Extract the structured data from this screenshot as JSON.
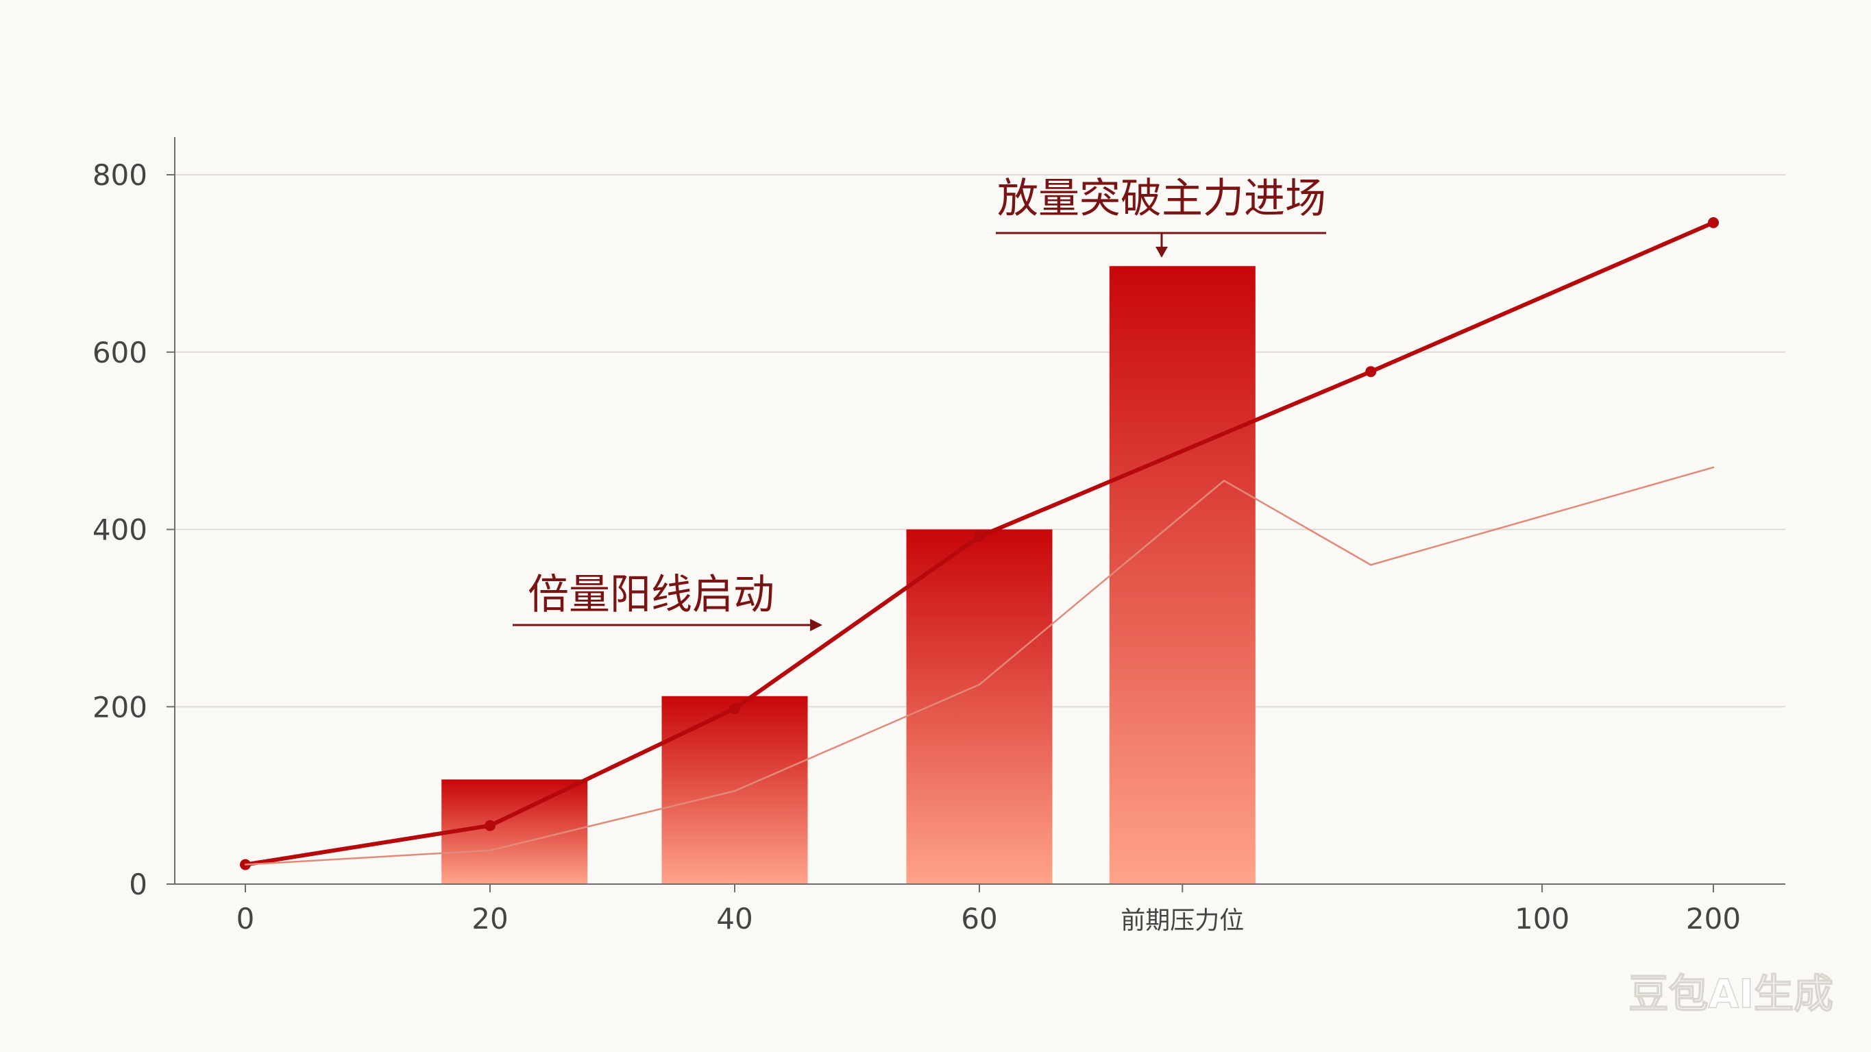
{
  "chart_data": {
    "type": "bar",
    "title": "",
    "xlabel": "",
    "ylabel": "",
    "ylim": [
      0,
      800
    ],
    "yticks": [
      0,
      200,
      400,
      600,
      800
    ],
    "xticks": [
      "0",
      "20",
      "40",
      "60",
      "前期压力位",
      "100",
      "200"
    ],
    "grid": true,
    "legend": "none",
    "bars": [
      {
        "x_index": 1.1,
        "value": 118
      },
      {
        "x_index": 2.0,
        "value": 212
      },
      {
        "x_index": 3.0,
        "value": 400
      },
      {
        "x_index": 3.83,
        "value": 697
      }
    ],
    "series": [
      {
        "type": "line",
        "points": [
          {
            "x_index": 0,
            "value": 22
          },
          {
            "x_index": 1,
            "value": 66
          },
          {
            "x_index": 2,
            "value": 198
          },
          {
            "x_index": 3,
            "value": 392
          },
          {
            "x_index": 4.6,
            "value": 578
          },
          {
            "x_index": 6,
            "value": 746
          }
        ],
        "markers": true,
        "color": "#b5090c"
      },
      {
        "type": "line",
        "points": [
          {
            "x_index": 0,
            "value": 22
          },
          {
            "x_index": 1,
            "value": 38
          },
          {
            "x_index": 2,
            "value": 105
          },
          {
            "x_index": 3,
            "value": 225
          },
          {
            "x_index": 4,
            "value": 455
          },
          {
            "x_index": 4.6,
            "value": 360
          },
          {
            "x_index": 6,
            "value": 470
          }
        ],
        "markers": false,
        "color": "#e28a7a"
      }
    ],
    "annotations": [
      {
        "text": "倍量阳线启动",
        "points_to": "bar-2"
      },
      {
        "text": "放量突破主力进场",
        "points_to": "bar-4"
      }
    ],
    "colors": {
      "bar_top": "#c8060a",
      "bar_bottom": "#ffa489",
      "line": "#b5090c",
      "annotation": "#7a1414",
      "axis": "#6e6e6e",
      "grid": "#dedbd3",
      "tick_text": "#444444"
    }
  },
  "watermark": "豆包AI生成"
}
